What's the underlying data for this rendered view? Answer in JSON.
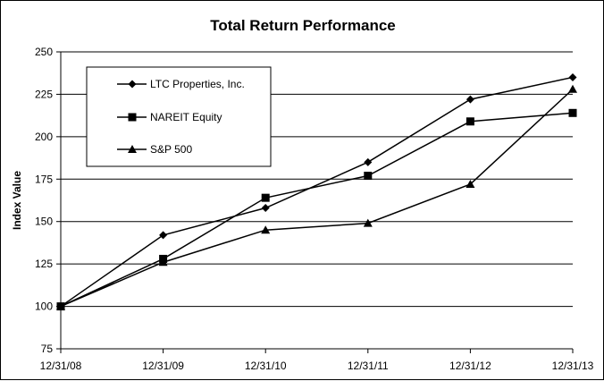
{
  "chart_data": {
    "type": "line",
    "title": "Total Return Performance",
    "ylabel": "Index Value",
    "xlabel": "",
    "categories": [
      "12/31/08",
      "12/31/09",
      "12/31/10",
      "12/31/11",
      "12/31/12",
      "12/31/13"
    ],
    "ylim": [
      75,
      250
    ],
    "yticks": [
      75,
      100,
      125,
      150,
      175,
      200,
      225,
      250
    ],
    "grid": "horizontal",
    "legend_position": "top-left",
    "series": [
      {
        "name": "LTC Properties, Inc.",
        "marker": "diamond",
        "color": "#000000",
        "values": [
          100,
          142,
          158,
          185,
          222,
          235
        ]
      },
      {
        "name": "NAREIT Equity",
        "marker": "square",
        "color": "#000000",
        "values": [
          100,
          128,
          164,
          177,
          209,
          214
        ]
      },
      {
        "name": "S&P 500",
        "marker": "triangle",
        "color": "#000000",
        "values": [
          100,
          126,
          145,
          149,
          172,
          228
        ]
      }
    ]
  }
}
